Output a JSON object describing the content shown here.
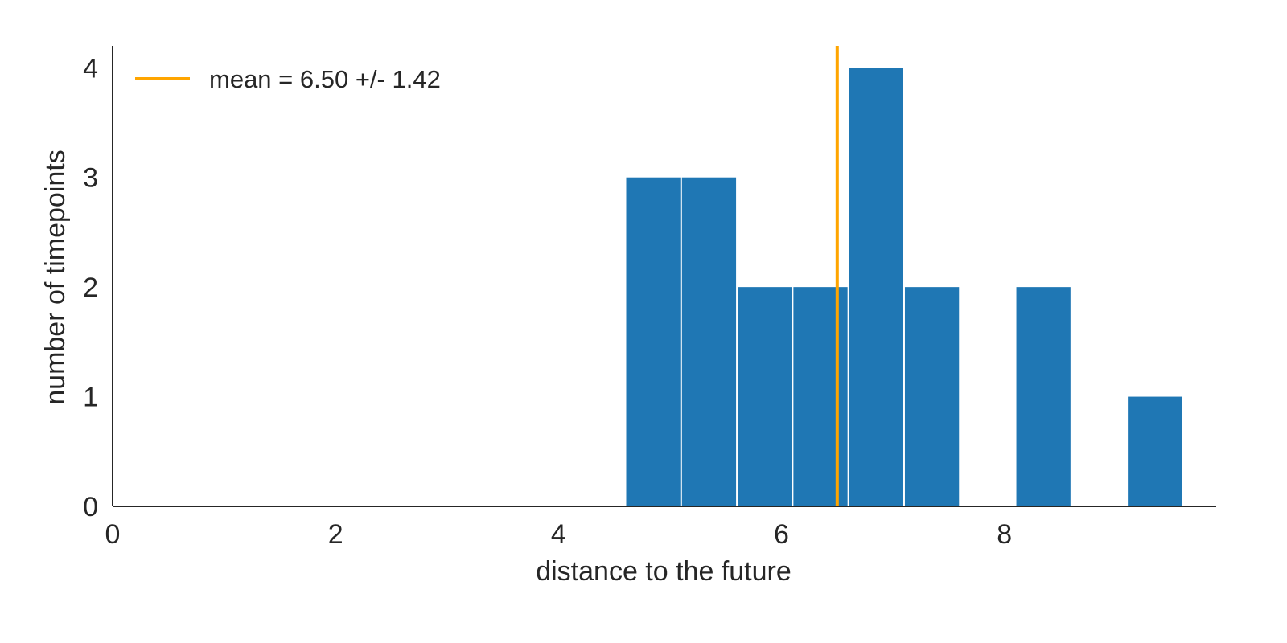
{
  "chart_data": {
    "type": "bar",
    "subtype": "histogram",
    "bins": [
      {
        "x0": 4.6,
        "x1": 5.1,
        "count": 3
      },
      {
        "x0": 5.1,
        "x1": 5.6,
        "count": 3
      },
      {
        "x0": 5.6,
        "x1": 6.1,
        "count": 2
      },
      {
        "x0": 6.1,
        "x1": 6.6,
        "count": 2
      },
      {
        "x0": 6.6,
        "x1": 7.1,
        "count": 4
      },
      {
        "x0": 7.1,
        "x1": 7.6,
        "count": 2
      },
      {
        "x0": 8.1,
        "x1": 8.6,
        "count": 2
      },
      {
        "x0": 9.1,
        "x1": 9.6,
        "count": 1
      }
    ],
    "mean_line": {
      "value": 6.5,
      "label": "mean = 6.50 +/- 1.42",
      "color": "#ffa500"
    },
    "bar_color": "#1f77b4",
    "title": "",
    "xlabel": "distance to the future",
    "ylabel": "number of timepoints",
    "xlim": [
      0,
      9.9
    ],
    "ylim": [
      0,
      4.2
    ],
    "xticks": [
      0,
      2,
      4,
      6,
      8
    ],
    "yticks": [
      0,
      1,
      2,
      3,
      4
    ],
    "grid": false,
    "legend_position": "upper-left"
  }
}
